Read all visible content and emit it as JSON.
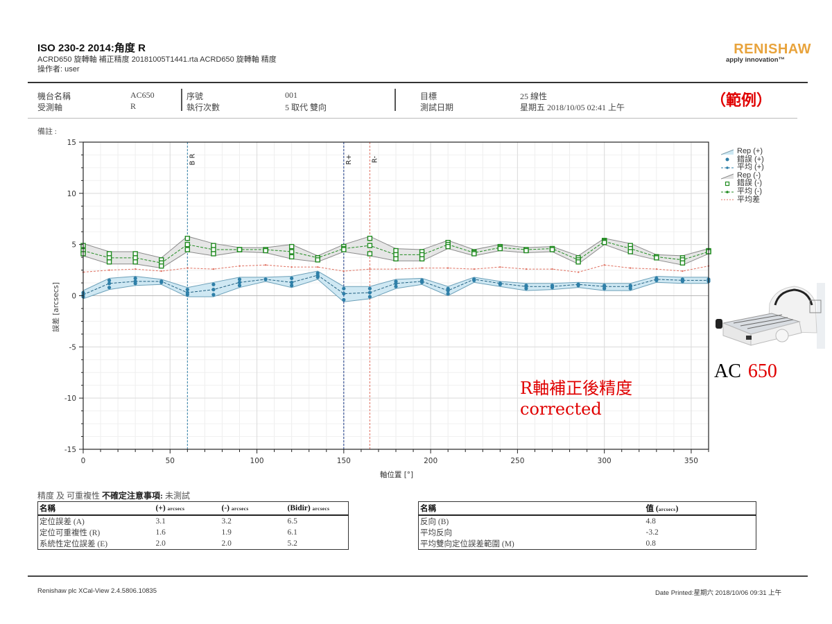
{
  "header": {
    "title": "ISO 230-2 2014:角度 R",
    "subtitle": "ACRD650 旋轉軸 補正精度 20181005T1441.rta ACRD650 旋轉軸 精度",
    "operator": "操作者: user",
    "logo_brand": "RENISHAW",
    "logo_tagline": "apply innovation™"
  },
  "info": {
    "machine_name_label": "機台名稱",
    "machine_name_value": "AC650",
    "axis_label": "受測軸",
    "axis_value": "R",
    "serial_label": "序號",
    "serial_value": "001",
    "runs_label": "執行次數",
    "runs_value": "5 取代 雙向",
    "target_label": "目標",
    "target_value": "25 線性",
    "date_label": "測試日期",
    "date_value": "星期五 2018/10/05 02:41 上午",
    "remarks_label": "備註 :"
  },
  "annotations": {
    "example": "（範例）",
    "corrected_cn": "R軸補正後精度",
    "corrected_en": "corrected",
    "machine_model_a": "AC",
    "machine_model_b": "650"
  },
  "legend": [
    {
      "label": "Rep (+)",
      "symbol": "band-blue"
    },
    {
      "label": "錯誤 (+)",
      "symbol": "dot-blue"
    },
    {
      "label": "平均 (+)",
      "symbol": "line-blue"
    },
    {
      "label": "Rep (-)",
      "symbol": "band-gray"
    },
    {
      "label": "錯誤 (-)",
      "symbol": "square-green"
    },
    {
      "label": "平均 (-)",
      "symbol": "line-green"
    },
    {
      "label": "平均差",
      "symbol": "line-red"
    }
  ],
  "chart_data": {
    "type": "line",
    "title": "ISO 230-2 2014:角度 R",
    "xlabel": "軸位置 [°]",
    "ylabel": "誤差 [arcsecs]",
    "xlim": [
      0,
      360
    ],
    "ylim": [
      -15,
      15
    ],
    "xticks": [
      0,
      50,
      100,
      150,
      200,
      250,
      300,
      350
    ],
    "yticks": [
      -15,
      -10,
      -5,
      0,
      5,
      10,
      15
    ],
    "grid": true,
    "legend_position": "right",
    "x": [
      0,
      15,
      30,
      45,
      60,
      75,
      90,
      105,
      120,
      135,
      150,
      165,
      180,
      195,
      210,
      225,
      240,
      255,
      270,
      285,
      300,
      315,
      330,
      345,
      360
    ],
    "series": [
      {
        "name": "平均 (+)",
        "color": "#2e7fa8",
        "values": [
          0.1,
          1.2,
          1.4,
          1.4,
          0.3,
          0.6,
          1.3,
          1.6,
          1.3,
          2.0,
          0.2,
          0.3,
          1.2,
          1.4,
          0.5,
          1.6,
          1.2,
          0.9,
          0.9,
          1.1,
          0.9,
          0.9,
          1.6,
          1.5,
          1.5
        ]
      },
      {
        "name": "Rep (+) upper",
        "color": "#7fbcd8",
        "values": [
          0.5,
          1.7,
          1.9,
          1.6,
          0.8,
          1.3,
          1.8,
          1.8,
          1.9,
          2.4,
          0.9,
          0.9,
          1.6,
          1.7,
          0.9,
          1.8,
          1.4,
          1.2,
          1.2,
          1.3,
          1.2,
          1.2,
          1.9,
          1.8,
          1.8
        ]
      },
      {
        "name": "Rep (+) lower",
        "color": "#7fbcd8",
        "values": [
          -0.3,
          0.6,
          1.0,
          1.1,
          -0.1,
          -0.1,
          0.8,
          1.4,
          0.8,
          1.6,
          -0.6,
          -0.3,
          0.7,
          1.1,
          0.0,
          1.3,
          0.9,
          0.5,
          0.6,
          0.8,
          0.5,
          0.5,
          1.3,
          1.2,
          1.2
        ]
      },
      {
        "name": "平均 (-)",
        "color": "#1f8a1f",
        "values": [
          4.4,
          3.7,
          3.7,
          3.2,
          5.0,
          4.5,
          4.5,
          4.5,
          4.3,
          3.7,
          4.6,
          4.9,
          4.0,
          4.0,
          5.0,
          4.2,
          4.7,
          4.5,
          4.6,
          3.5,
          5.3,
          4.6,
          3.8,
          3.5,
          4.3
        ]
      },
      {
        "name": "Rep (-) upper",
        "color": "#8a8a8a",
        "values": [
          5.1,
          4.3,
          4.3,
          3.7,
          5.8,
          5.1,
          4.7,
          4.7,
          5.0,
          3.9,
          5.0,
          5.8,
          4.6,
          4.5,
          5.4,
          4.5,
          5.0,
          4.7,
          4.8,
          3.9,
          5.6,
          5.1,
          4.0,
          3.9,
          4.6
        ]
      },
      {
        "name": "Rep (-) lower",
        "color": "#8a8a8a",
        "values": [
          3.9,
          3.1,
          3.1,
          2.7,
          4.3,
          3.9,
          4.3,
          4.2,
          3.6,
          3.3,
          4.3,
          3.9,
          3.4,
          3.4,
          4.6,
          3.9,
          4.4,
          4.2,
          4.3,
          3.1,
          5.0,
          4.1,
          3.5,
          3.0,
          4.1
        ]
      },
      {
        "name": "平均差",
        "color": "#e07060",
        "values": [
          2.3,
          2.5,
          2.6,
          2.4,
          2.7,
          2.6,
          2.9,
          3.0,
          2.8,
          2.8,
          2.4,
          2.6,
          2.6,
          2.7,
          2.7,
          2.6,
          2.8,
          2.6,
          2.6,
          2.3,
          3.0,
          2.7,
          2.6,
          2.4,
          2.9
        ]
      }
    ],
    "markers": [
      {
        "label": "B R",
        "x": 60,
        "color": "#2e7fa8"
      },
      {
        "label": "R+",
        "x": 150,
        "color": "#1a3a8a"
      },
      {
        "label": "R-",
        "x": 165,
        "color": "#e07060"
      }
    ]
  },
  "table1": {
    "caption_pre": "精度 及 可重複性 ",
    "caption_bold": "不確定注意事項:",
    "caption_post": " 未測試",
    "headers": [
      "名稱",
      "(+)",
      "(-)",
      "(Bidir)"
    ],
    "unit": "arcsecs",
    "rows": [
      [
        "定位誤差 (A)",
        "3.1",
        "3.2",
        "6.5"
      ],
      [
        "定位可重複性 (R)",
        "1.6",
        "1.9",
        "6.1"
      ],
      [
        "系統性定位誤差 (E)",
        "2.0",
        "2.0",
        "5.2"
      ]
    ]
  },
  "table2": {
    "headers": [
      "名稱",
      "值"
    ],
    "unit": "arcsecs",
    "rows": [
      [
        "反向 (B)",
        "4.8"
      ],
      [
        "平均反向",
        "-3.2"
      ],
      [
        "平均雙向定位誤差範圍 (M)",
        "0.8"
      ]
    ]
  },
  "footer": {
    "left": "Renishaw plc XCal-View 2.4.5806.10835",
    "right": "Date Printed:星期六 2018/10/06 09:31 上午"
  }
}
